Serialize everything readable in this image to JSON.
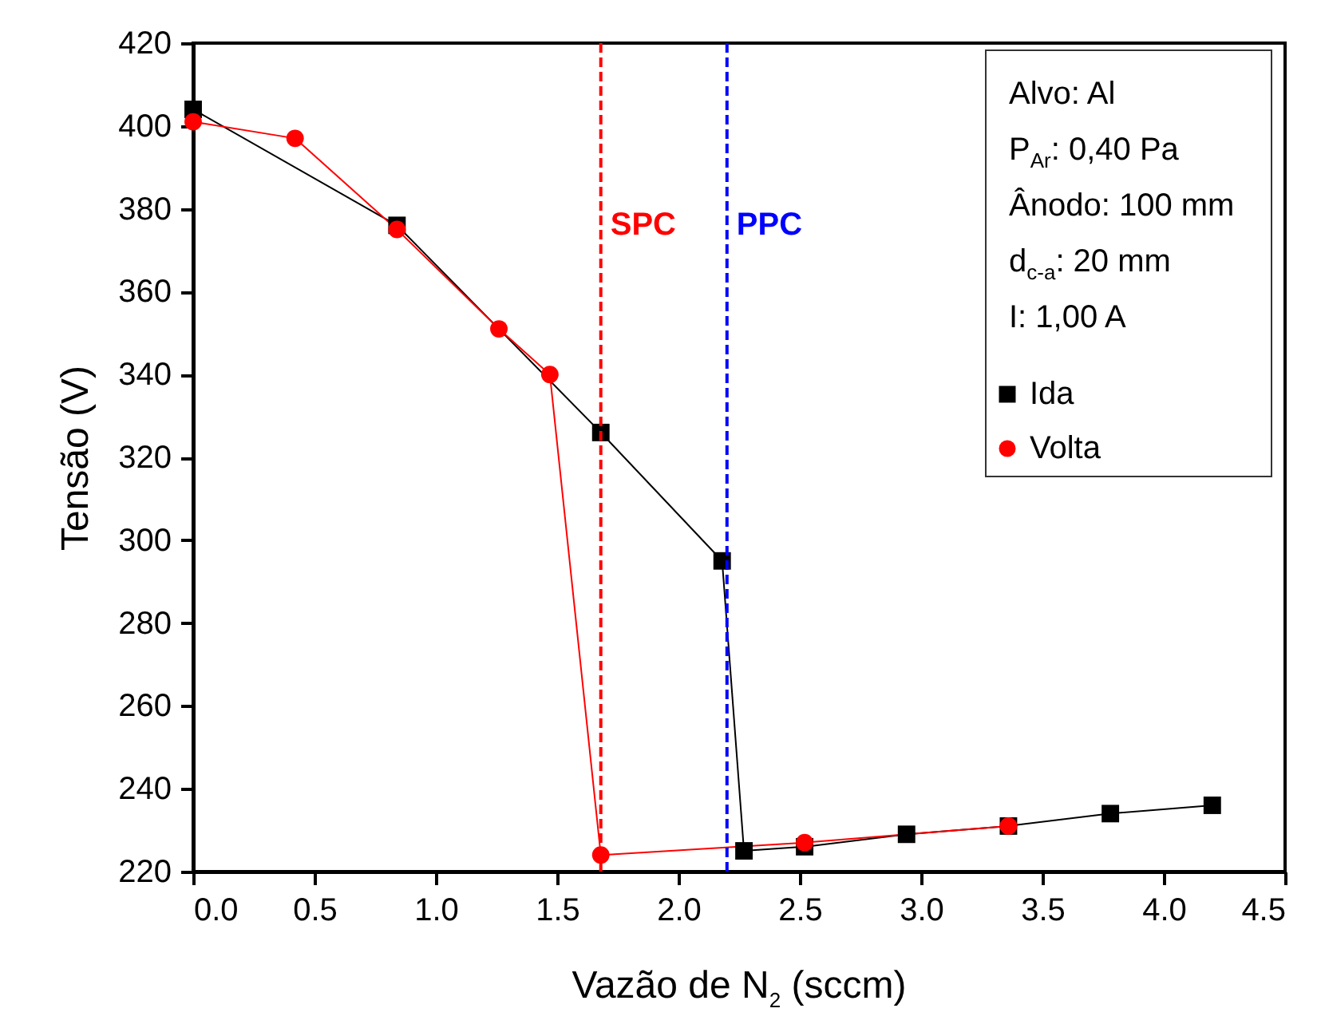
{
  "chart_data": {
    "type": "line",
    "xlabel": "Vazão de N$_{2}$ (sccm)",
    "ylabel": "Tensão (V)",
    "xlim": [
      0,
      4.5
    ],
    "xticks": [
      {
        "value": 0,
        "label": "0.0"
      },
      0.5,
      {
        "value": 1,
        "label": "1.0"
      },
      1.5,
      {
        "value": 2,
        "label": "2.0"
      },
      2.5,
      {
        "value": 3,
        "label": "3.0"
      },
      3.5,
      {
        "value": 4,
        "label": "4.0"
      },
      4.5
    ],
    "ylim": [
      220,
      420
    ],
    "yticks": [
      220,
      240,
      260,
      280,
      300,
      320,
      340,
      360,
      380,
      400,
      420
    ],
    "series": [
      {
        "name": "Ida",
        "color": "#000000",
        "marker": "square",
        "x": [
          0,
          0.84,
          1.68,
          2.18,
          2.27,
          2.52,
          2.94,
          3.36,
          3.78,
          4.2
        ],
        "values": [
          404,
          376,
          326,
          295,
          225,
          226,
          229,
          231,
          234,
          236
        ]
      },
      {
        "name": "Volta",
        "color": "#ff0000",
        "marker": "circle",
        "x": [
          0,
          0.42,
          0.84,
          1.26,
          1.47,
          1.68,
          2.52,
          3.36
        ],
        "values": [
          401,
          397,
          375,
          351,
          340,
          224,
          227,
          231
        ]
      }
    ],
    "ref_lines": [
      {
        "axis": "x",
        "value": 1.68,
        "label": "SPC",
        "color": "#ff0000",
        "line_style": "dashed"
      },
      {
        "axis": "x",
        "value": 2.2,
        "label": "PPC",
        "color": "#0000ff",
        "line_style": "dashed"
      }
    ],
    "annotations": [
      "Alvo: Al",
      "P$_{Ar}$: 0,40 Pa",
      "Ânodo: 100 mm",
      "d$_{c-a}$: 20 mm",
      "I: 1,00 A"
    ],
    "legend": "top right"
  }
}
